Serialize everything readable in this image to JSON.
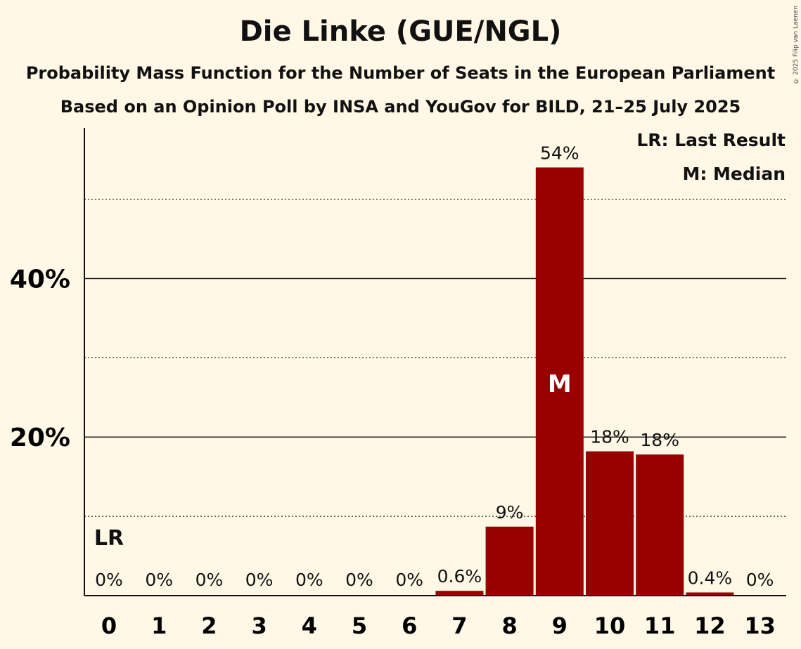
{
  "chart_data": {
    "type": "bar",
    "title": "Die Linke (GUE/NGL)",
    "subtitle": "Probability Mass Function for the Number of Seats in the European Parliament",
    "source": "Based on an Opinion Poll by INSA and YouGov for BILD, 21–25 July 2025",
    "copyright": "© 2025 Filip van Laenen",
    "categories": [
      "0",
      "1",
      "2",
      "3",
      "4",
      "5",
      "6",
      "7",
      "8",
      "9",
      "10",
      "11",
      "12",
      "13"
    ],
    "values": [
      0,
      0,
      0,
      0,
      0,
      0,
      0,
      0.6,
      8.7,
      54.0,
      18.2,
      17.8,
      0.4,
      0
    ],
    "value_labels": [
      "0%",
      "0%",
      "0%",
      "0%",
      "0%",
      "0%",
      "0%",
      "0.6%",
      "9%",
      "54%",
      "18%",
      "18%",
      "0.4%",
      "0%"
    ],
    "ylim": [
      0,
      59
    ],
    "major_ticks": [
      20,
      40
    ],
    "major_tick_labels": [
      "20%",
      "40%"
    ],
    "minor_gridlines": [
      10,
      30,
      50
    ],
    "bar_color": "#990000",
    "last_result_category": "0",
    "last_result_marker": "LR",
    "median_category": "9",
    "median_marker": "M",
    "legend": {
      "lr": "LR: Last Result",
      "m": "M: Median",
      "position": "top-right"
    }
  }
}
